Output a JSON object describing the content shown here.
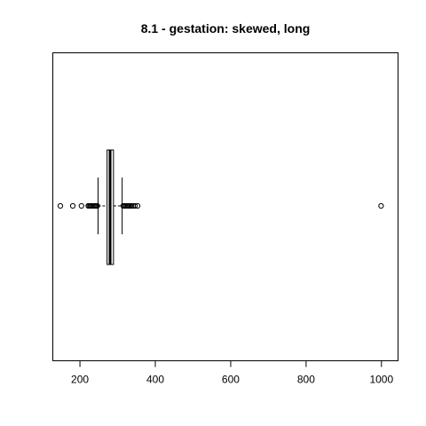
{
  "chart_data": {
    "type": "boxplot",
    "orientation": "horizontal",
    "title": "8.1 - gestation: skewed, long",
    "xlabel": "",
    "ylabel": "",
    "xlim": [
      128,
      1044
    ],
    "x_ticks": [
      200,
      400,
      600,
      800,
      1000
    ],
    "x_tick_labels": [
      "200",
      "400",
      "600",
      "800",
      "1000"
    ],
    "grid": false,
    "box": {
      "whisker_low": 248,
      "q1": 272,
      "median": 280,
      "q3": 289,
      "whisker_high": 312
    },
    "outliers_low": [
      148,
      181,
      204,
      222,
      225,
      228,
      231,
      234,
      237,
      240,
      243,
      246
    ],
    "outliers_high": [
      315,
      318,
      321,
      324,
      327,
      330,
      333,
      337,
      341,
      346,
      353,
      999
    ]
  }
}
